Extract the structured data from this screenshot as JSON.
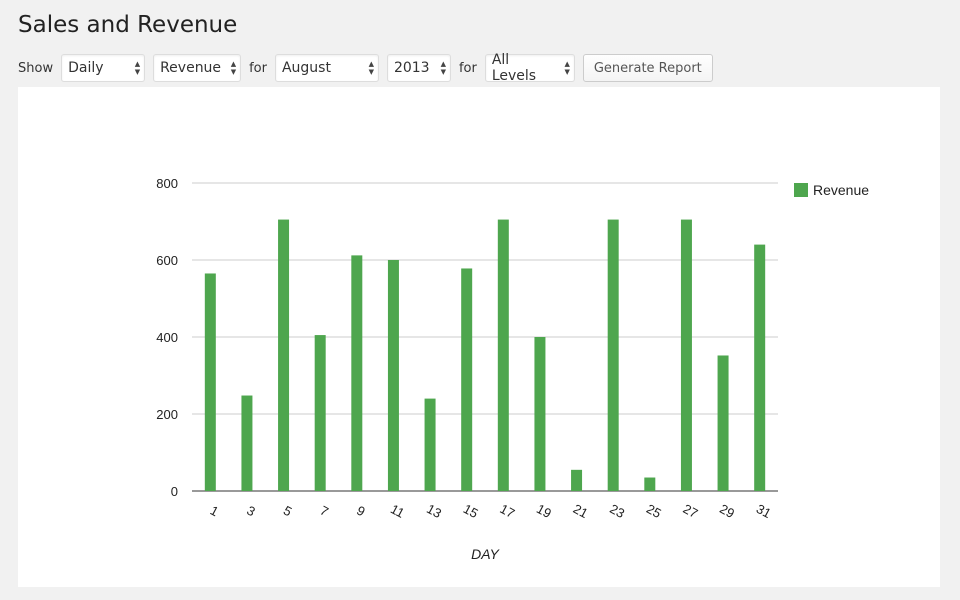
{
  "page": {
    "title": "Sales and Revenue"
  },
  "toolbar": {
    "show_label": "Show",
    "period": "Daily",
    "metric": "Revenue",
    "for_label_1": "for",
    "month": "August",
    "year": "2013",
    "for_label_2": "for",
    "level": "All Levels",
    "generate_label": "Generate Report"
  },
  "chart_data": {
    "type": "bar",
    "xlabel": "DAY",
    "ylabel": "",
    "ylim": [
      0,
      800
    ],
    "yticks": [
      0,
      200,
      400,
      600,
      800
    ],
    "grid": true,
    "legend_position": "right",
    "color": "#4ea64e",
    "categories": [
      "1",
      "3",
      "5",
      "7",
      "9",
      "11",
      "13",
      "15",
      "17",
      "19",
      "21",
      "23",
      "25",
      "27",
      "29",
      "31"
    ],
    "series": [
      {
        "name": "Revenue",
        "values": [
          565,
          248,
          705,
          405,
          612,
          600,
          240,
          578,
          705,
          400,
          55,
          705,
          35,
          705,
          352,
          640
        ]
      }
    ]
  }
}
